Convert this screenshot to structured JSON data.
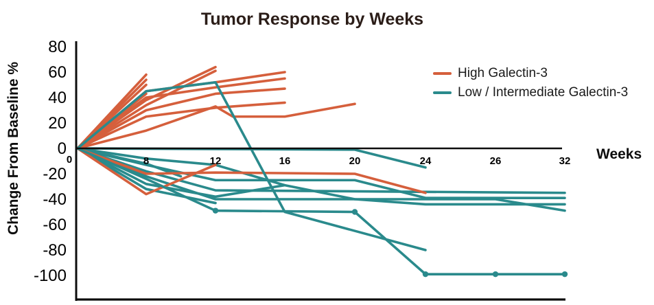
{
  "title": "Tumor Response by Weeks",
  "axes": {
    "y_label": "Change From Baseline %",
    "x_label": "Weeks",
    "y_ticks": [
      80,
      60,
      40,
      20,
      0,
      -20,
      -40,
      -60,
      -80,
      -100
    ],
    "x_ticks": [
      0,
      8,
      12,
      16,
      20,
      24,
      26,
      32
    ]
  },
  "chart_data": {
    "type": "line",
    "title": "Tumor Response by Weeks",
    "xlabel": "Weeks",
    "ylabel": "Change From Baseline %",
    "x_ticks": [
      0,
      8,
      12,
      16,
      20,
      24,
      26,
      32
    ],
    "y_ticks": [
      80,
      60,
      40,
      20,
      0,
      -20,
      -40,
      -60,
      -80,
      -100
    ],
    "ylim": [
      -100,
      80
    ],
    "grid": false,
    "legend_position": "upper right",
    "legend": [
      {
        "group": "high",
        "label": "High Galectin-3",
        "color": "#d55f3c"
      },
      {
        "group": "low",
        "label": "Low / Intermediate Galectin-3",
        "color": "#2a8a8c"
      }
    ],
    "series": [
      {
        "group": "low",
        "points": [
          [
            0,
            0
          ],
          [
            8,
            -13
          ],
          [
            12,
            -25
          ],
          [
            20,
            -25
          ],
          [
            24,
            -39
          ],
          [
            32,
            -39
          ]
        ]
      },
      {
        "group": "low",
        "points": [
          [
            0,
            0
          ],
          [
            8,
            -18
          ],
          [
            12,
            -33
          ],
          [
            32,
            -35
          ]
        ]
      },
      {
        "group": "low",
        "points": [
          [
            0,
            0
          ],
          [
            8,
            -22
          ],
          [
            12,
            -40
          ],
          [
            26,
            -40
          ],
          [
            32,
            -49
          ]
        ]
      },
      {
        "group": "low",
        "points": [
          [
            0,
            0
          ],
          [
            8,
            -8
          ],
          [
            12,
            -13
          ],
          [
            16,
            -29
          ],
          [
            20,
            -40
          ],
          [
            24,
            -44
          ],
          [
            32,
            -44
          ]
        ]
      },
      {
        "group": "low",
        "points": [
          [
            0,
            0
          ],
          [
            8,
            -32
          ],
          [
            12,
            -43
          ]
        ]
      },
      {
        "group": "low",
        "points": [
          [
            0,
            0
          ],
          [
            8,
            -12
          ],
          [
            10,
            -22
          ]
        ]
      },
      {
        "group": "low",
        "points": [
          [
            0,
            0
          ],
          [
            8,
            -28
          ],
          [
            12,
            -38
          ],
          [
            16,
            -29
          ]
        ]
      },
      {
        "group": "low",
        "points": [
          [
            0,
            0
          ],
          [
            20,
            -1
          ],
          [
            24,
            -15
          ]
        ]
      },
      {
        "group": "high",
        "points": [
          [
            0,
            0
          ],
          [
            8,
            58
          ]
        ]
      },
      {
        "group": "high",
        "points": [
          [
            0,
            0
          ],
          [
            8,
            54
          ]
        ]
      },
      {
        "group": "high",
        "points": [
          [
            0,
            0
          ],
          [
            8,
            50
          ]
        ]
      },
      {
        "group": "high",
        "points": [
          [
            0,
            0
          ],
          [
            8,
            43
          ]
        ]
      },
      {
        "group": "high",
        "points": [
          [
            0,
            0
          ],
          [
            8,
            38
          ],
          [
            12,
            64
          ]
        ]
      },
      {
        "group": "high",
        "points": [
          [
            0,
            0
          ],
          [
            8,
            34
          ],
          [
            12,
            61
          ]
        ]
      },
      {
        "group": "high",
        "points": [
          [
            0,
            0
          ],
          [
            8,
            45
          ],
          [
            12,
            52
          ],
          [
            16,
            60
          ]
        ]
      },
      {
        "group": "high",
        "points": [
          [
            0,
            0
          ],
          [
            8,
            40
          ],
          [
            12,
            48
          ],
          [
            16,
            55
          ]
        ]
      },
      {
        "group": "high",
        "points": [
          [
            0,
            0
          ],
          [
            8,
            30
          ],
          [
            12,
            43
          ],
          [
            16,
            47
          ]
        ]
      },
      {
        "group": "high",
        "points": [
          [
            0,
            0
          ],
          [
            8,
            25
          ],
          [
            12,
            32
          ],
          [
            16,
            36
          ]
        ]
      },
      {
        "group": "high",
        "points": [
          [
            0,
            0
          ],
          [
            8,
            14
          ],
          [
            12,
            33
          ],
          [
            13,
            25
          ],
          [
            16,
            25
          ],
          [
            20,
            35
          ]
        ]
      },
      {
        "group": "high",
        "points": [
          [
            0,
            0
          ],
          [
            8,
            -36
          ],
          [
            12,
            -13
          ]
        ]
      },
      {
        "group": "high",
        "points": [
          [
            0,
            0
          ],
          [
            8,
            -20
          ],
          [
            12,
            -19
          ],
          [
            20,
            -20
          ],
          [
            24,
            -35
          ]
        ]
      },
      {
        "group": "low",
        "front": true,
        "points": [
          [
            0,
            0
          ],
          [
            8,
            45
          ],
          [
            12,
            52
          ],
          [
            16,
            -50
          ],
          [
            24,
            -80
          ]
        ]
      },
      {
        "group": "low",
        "front": true,
        "points": [
          [
            0,
            0
          ],
          [
            8,
            -24
          ],
          [
            12,
            -49
          ],
          [
            20,
            -50
          ],
          [
            24,
            -99
          ],
          [
            26,
            -99
          ],
          [
            32,
            -99
          ]
        ],
        "dots": [
          [
            12,
            -49
          ],
          [
            20,
            -50
          ],
          [
            24,
            -99
          ],
          [
            26,
            -99
          ],
          [
            32,
            -99
          ]
        ]
      }
    ]
  }
}
